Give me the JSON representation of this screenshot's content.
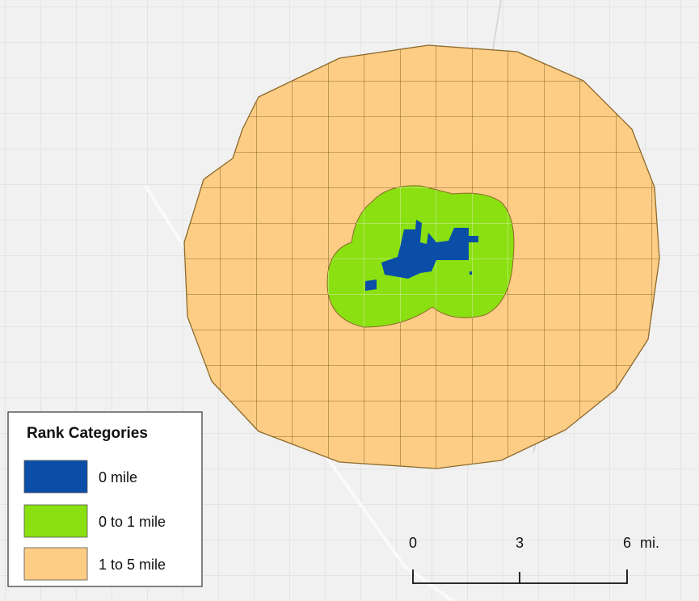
{
  "legend": {
    "title": "Rank Categories",
    "items": [
      {
        "label": "0 mile",
        "color": "#0a4ea8"
      },
      {
        "label": "0 to 1 mile",
        "color": "#8ae010"
      },
      {
        "label": "1 to 5 mile",
        "color": "#fdcd86"
      }
    ]
  },
  "scale_bar": {
    "labels": [
      "0",
      "3",
      "6"
    ],
    "unit": "mi."
  }
}
